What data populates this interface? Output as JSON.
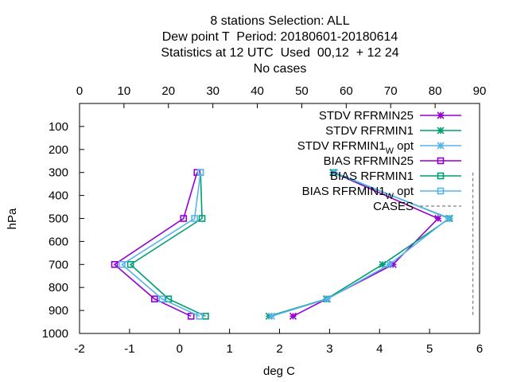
{
  "title_lines": [
    "8 stations Selection: ALL",
    "Dew point T  Period: 20180601-20180614",
    "Statistics at 12 UTC  Used  00,12  + 12 24",
    "No cases"
  ],
  "chart_data": {
    "type": "line",
    "orientation": "vertical-profile",
    "xlabel": "deg C",
    "ylabel": "hPa",
    "xlim": [
      -2,
      6
    ],
    "x_ticks": [
      -2,
      -1,
      0,
      1,
      2,
      3,
      4,
      5,
      6
    ],
    "ylim": [
      1000,
      0
    ],
    "y_ticks": [
      100,
      200,
      300,
      400,
      500,
      600,
      700,
      800,
      900,
      1000
    ],
    "x2lim": [
      0,
      90
    ],
    "x2_ticks": [
      0,
      10,
      20,
      30,
      40,
      50,
      60,
      70,
      80,
      90
    ],
    "legend_position": "top-right",
    "grid": false,
    "series": [
      {
        "name": "STDV RFRMIN25",
        "axis": "x",
        "color": "#9400d3",
        "marker": "x",
        "points": [
          [
            3.07,
            300
          ],
          [
            5.17,
            500
          ],
          [
            4.27,
            700
          ],
          [
            2.94,
            850
          ],
          [
            2.27,
            925
          ]
        ]
      },
      {
        "name": "STDV RFRMIN1",
        "axis": "x",
        "color": "#009e73",
        "marker": "x",
        "points": [
          [
            3.07,
            300
          ],
          [
            5.4,
            500
          ],
          [
            4.06,
            700
          ],
          [
            2.94,
            850
          ],
          [
            1.79,
            925
          ]
        ]
      },
      {
        "name": "STDV RFRMIN1",
        "name_sub": "W",
        "name_suffix": "opt",
        "axis": "x",
        "color": "#56b4e9",
        "marker": "x",
        "points": [
          [
            3.1,
            300
          ],
          [
            5.38,
            500
          ],
          [
            4.2,
            700
          ],
          [
            2.96,
            850
          ],
          [
            1.84,
            925
          ]
        ]
      },
      {
        "name": "BIAS RFRMIN25",
        "axis": "x",
        "color": "#9400d3",
        "marker": "square",
        "points": [
          [
            0.35,
            300
          ],
          [
            0.08,
            500
          ],
          [
            -1.3,
            700
          ],
          [
            -0.5,
            850
          ],
          [
            0.23,
            925
          ]
        ]
      },
      {
        "name": "BIAS RFRMIN1",
        "axis": "x",
        "color": "#009e73",
        "marker": "square",
        "points": [
          [
            0.42,
            300
          ],
          [
            0.45,
            500
          ],
          [
            -0.98,
            700
          ],
          [
            -0.22,
            850
          ],
          [
            0.52,
            925
          ]
        ]
      },
      {
        "name": "BIAS RFRMIN1",
        "name_sub": "W",
        "name_suffix": "opt",
        "axis": "x",
        "color": "#56b4e9",
        "marker": "square",
        "points": [
          [
            0.42,
            300
          ],
          [
            0.3,
            500
          ],
          [
            -1.15,
            700
          ],
          [
            -0.35,
            850
          ],
          [
            0.4,
            925
          ]
        ]
      },
      {
        "name": "CASES",
        "axis": "x2",
        "color": "#808080",
        "dashed": true,
        "marker": "none",
        "points": [
          [
            88.5,
            300
          ],
          [
            88.5,
            500
          ],
          [
            88.5,
            700
          ],
          [
            88.5,
            850
          ],
          [
            88.5,
            925
          ]
        ]
      }
    ]
  }
}
